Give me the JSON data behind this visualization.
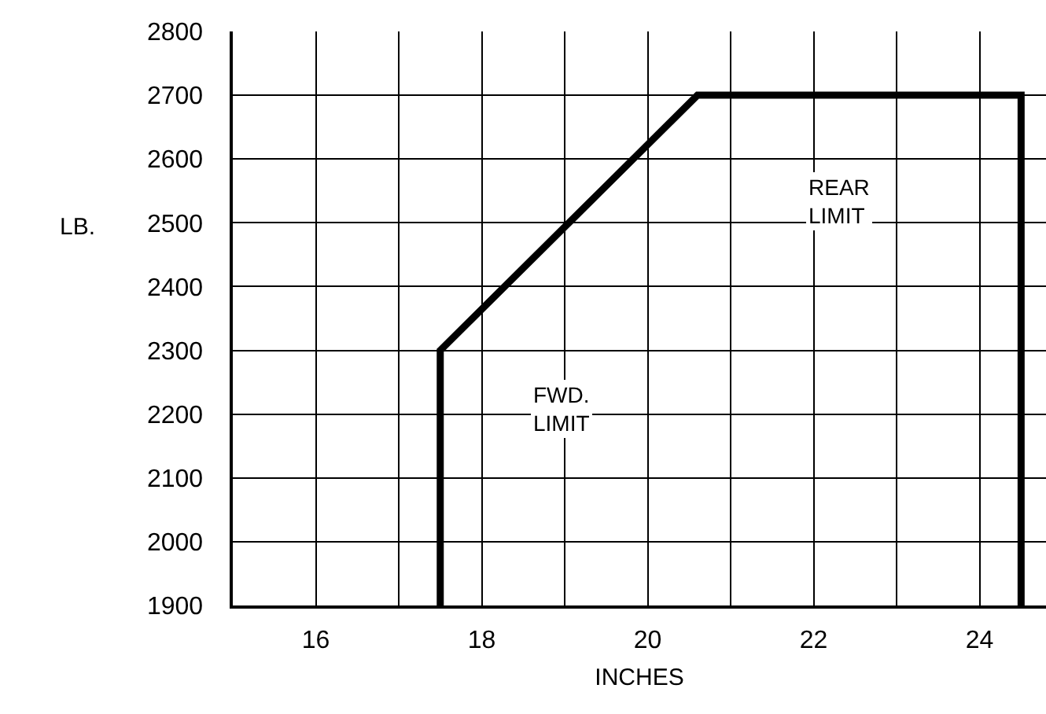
{
  "chart_data": {
    "type": "line",
    "xlabel": "INCHES",
    "ylabel": "LB.",
    "x": [
      17.5,
      17.5,
      20.6,
      24.5,
      24.5
    ],
    "series": [
      {
        "color": "#000000",
        "values": [
          1900,
          2300,
          2700,
          2700,
          1900
        ]
      }
    ],
    "xlim": [
      15,
      24.8
    ],
    "xticks": [
      {
        "value": 15,
        "label": null
      },
      16,
      {
        "value": 17,
        "label": null
      },
      18,
      {
        "value": 19,
        "label": null
      },
      20,
      {
        "value": 21,
        "label": null
      },
      22,
      {
        "value": 23,
        "label": null
      },
      24
    ],
    "ylim": [
      1900,
      2800
    ],
    "yticks": [
      1900,
      2000,
      2100,
      2200,
      2300,
      2400,
      2500,
      2600,
      2700,
      2800
    ],
    "grid": true,
    "marker": "none",
    "line_style": "solid",
    "annotations": [
      "REAR\nLIMIT",
      "FWD.\nLIMIT"
    ]
  }
}
